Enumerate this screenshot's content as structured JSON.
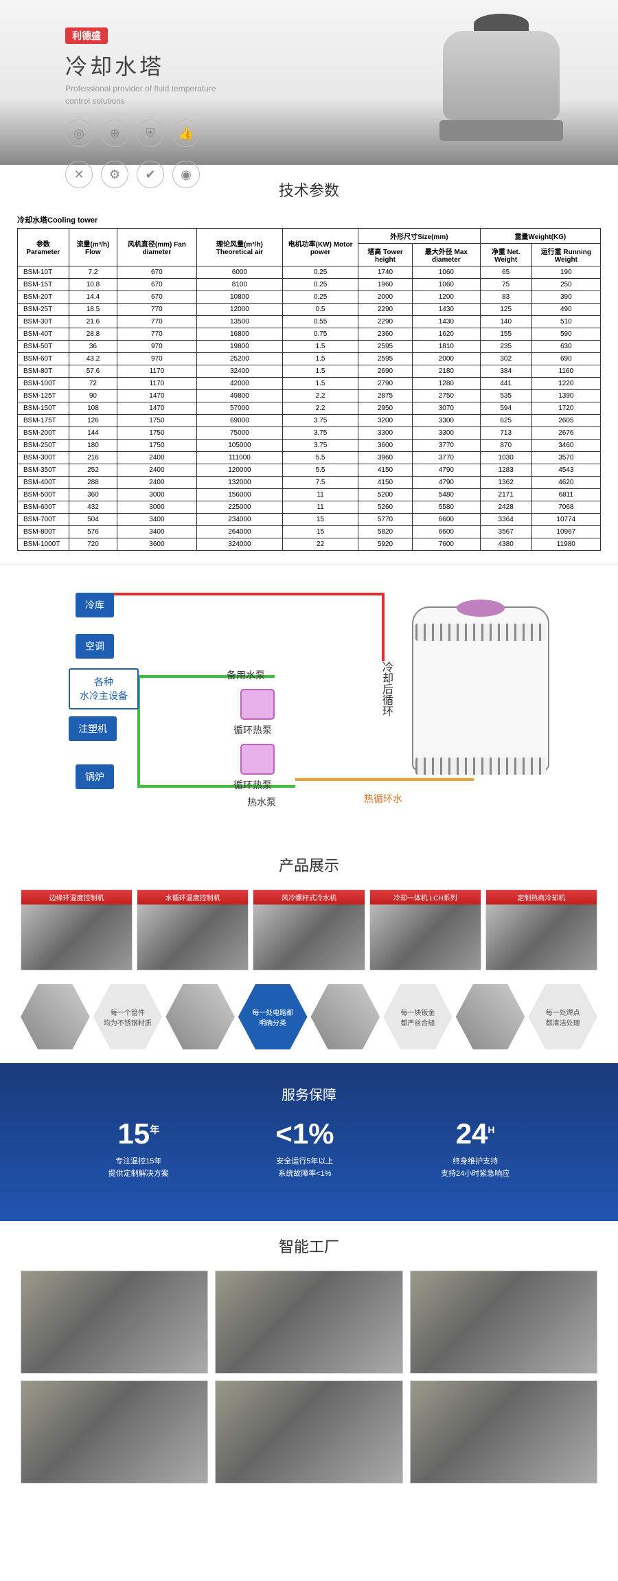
{
  "hero": {
    "brand": "利德盛",
    "title": "冷却水塔",
    "sub1": "Professional provider of fluid temperature",
    "sub2": "control solutions"
  },
  "sections": {
    "spec": "技术参数",
    "diagram_title": "",
    "products": "产品展示",
    "service": "服务保障",
    "factory": "智能工厂"
  },
  "spec_table": {
    "label": "冷却水塔Cooling tower",
    "header_top": {
      "param": "参数\nParameter",
      "flow": "流量(m³/h)\nFlow",
      "fan": "风机直径(mm)\nFan diameter",
      "air": "理论风量(m³/h)\nTheoretical air",
      "motor": "电机功率(KW)\nMotor power",
      "size": "外形尺寸Size(mm)",
      "weight": "重量Weight(KG)"
    },
    "header_sub": {
      "th": "塔高\nTower height",
      "md": "最大外径\nMax diameter",
      "nw": "净重\nNet. Weight",
      "rw": "运行重\nRunning Weight"
    },
    "rows": [
      [
        "BSM-10T",
        "7.2",
        "670",
        "6000",
        "0.25",
        "1740",
        "1060",
        "65",
        "190"
      ],
      [
        "BSM-15T",
        "10.8",
        "670",
        "8100",
        "0.25",
        "1960",
        "1060",
        "75",
        "250"
      ],
      [
        "BSM-20T",
        "14.4",
        "670",
        "10800",
        "0.25",
        "2000",
        "1200",
        "83",
        "390"
      ],
      [
        "BSM-25T",
        "18.5",
        "770",
        "12000",
        "0.5",
        "2290",
        "1430",
        "125",
        "490"
      ],
      [
        "BSM-30T",
        "21.6",
        "770",
        "13500",
        "0.55",
        "2290",
        "1430",
        "140",
        "510"
      ],
      [
        "BSM-40T",
        "28.8",
        "770",
        "16800",
        "0.75",
        "2360",
        "1620",
        "155",
        "590"
      ],
      [
        "BSM-50T",
        "36",
        "970",
        "19800",
        "1.5",
        "2595",
        "1810",
        "235",
        "630"
      ],
      [
        "BSM-60T",
        "43.2",
        "970",
        "25200",
        "1.5",
        "2595",
        "2000",
        "302",
        "690"
      ],
      [
        "BSM-80T",
        "57.6",
        "1170",
        "32400",
        "1.5",
        "2690",
        "2180",
        "384",
        "1160"
      ],
      [
        "BSM-100T",
        "72",
        "1170",
        "42000",
        "1.5",
        "2790",
        "1280",
        "441",
        "1220"
      ],
      [
        "BSM-125T",
        "90",
        "1470",
        "49800",
        "2.2",
        "2875",
        "2750",
        "535",
        "1390"
      ],
      [
        "BSM-150T",
        "108",
        "1470",
        "57000",
        "2.2",
        "2950",
        "3070",
        "594",
        "1720"
      ],
      [
        "BSM-175T",
        "126",
        "1750",
        "69000",
        "3.75",
        "3200",
        "3300",
        "625",
        "2605"
      ],
      [
        "BSM-200T",
        "144",
        "1750",
        "75000",
        "3.75",
        "3300",
        "3300",
        "713",
        "2676"
      ],
      [
        "BSM-250T",
        "180",
        "1750",
        "105000",
        "3.75",
        "3600",
        "3770",
        "870",
        "3460"
      ],
      [
        "BSM-300T",
        "216",
        "2400",
        "111000",
        "5.5",
        "3960",
        "3770",
        "1030",
        "3570"
      ],
      [
        "BSM-350T",
        "252",
        "2400",
        "120000",
        "5.5",
        "4150",
        "4790",
        "1283",
        "4543"
      ],
      [
        "BSM-400T",
        "288",
        "2400",
        "132000",
        "7.5",
        "4150",
        "4790",
        "1362",
        "4620"
      ],
      [
        "BSM-500T",
        "360",
        "3000",
        "156000",
        "11",
        "5200",
        "5480",
        "2171",
        "6811"
      ],
      [
        "BSM-600T",
        "432",
        "3000",
        "225000",
        "11",
        "5260",
        "5580",
        "2428",
        "7068"
      ],
      [
        "BSM-700T",
        "504",
        "3400",
        "234000",
        "15",
        "5770",
        "6600",
        "3364",
        "10774"
      ],
      [
        "BSM-800T",
        "576",
        "3400",
        "264000",
        "15",
        "5820",
        "6600",
        "3567",
        "10967"
      ],
      [
        "BSM-1000T",
        "720",
        "3600",
        "324000",
        "22",
        "5920",
        "7600",
        "4380",
        "11980"
      ]
    ]
  },
  "diagram": {
    "nodes": {
      "cold": "冷库",
      "ac": "空调",
      "main": "各种\n水冷主设备",
      "inject": "注塑机",
      "boiler": "锅炉",
      "backup": "备用水泵",
      "pump1": "循环热泵",
      "pump2": "循环热泵",
      "hotpump": "热水泵",
      "hotcirc": "热循环水",
      "aftercool": "冷却后循环"
    }
  },
  "products": {
    "cards": [
      "边缘环温度控制机",
      "水循环温度控制机",
      "风冷螺杆式冷水机",
      "冷却一体机 LCH系列",
      "定制热商冷却机"
    ]
  },
  "hex": {
    "t1": "每一个管件\n均为不锈钢材质",
    "t2": "每一处电路都\n明确分类",
    "t3": "每一块钣金\n都严丝合缝",
    "t4": "每一处焊点\n都清洁处理"
  },
  "service": [
    {
      "num": "15",
      "sup": "年",
      "l1": "专注温控15年",
      "l2": "提供定制解决方案"
    },
    {
      "num": "<1%",
      "sup": "",
      "l1": "安全运行5年以上",
      "l2": "系统故障率<1%"
    },
    {
      "num": "24",
      "sup": "H",
      "l1": "终身维护支持",
      "l2": "支持24小时紧急响应"
    }
  ]
}
